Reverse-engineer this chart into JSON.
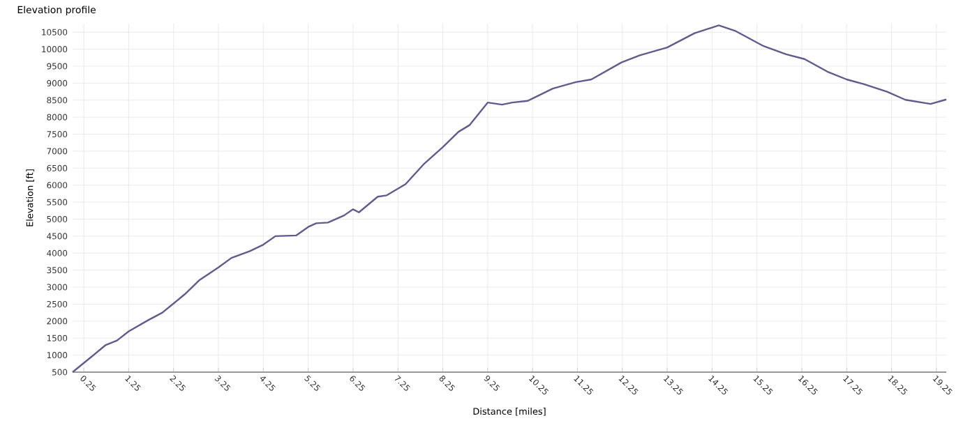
{
  "chart_data": {
    "type": "line",
    "title": "Elevation profile",
    "xlabel": "Distance [miles]",
    "ylabel": "Elevation [ft]",
    "xlim": [
      0,
      19.47
    ],
    "ylim": [
      500,
      10750
    ],
    "xticks": [
      0.25,
      1.25,
      2.25,
      3.25,
      4.25,
      5.25,
      6.25,
      7.25,
      8.25,
      9.25,
      10.25,
      11.25,
      12.25,
      13.25,
      14.25,
      15.25,
      16.25,
      17.25,
      18.25,
      19.25
    ],
    "yticks": [
      500,
      1000,
      1500,
      2000,
      2500,
      3000,
      3500,
      4000,
      4500,
      5000,
      5500,
      6000,
      6500,
      7000,
      7500,
      8000,
      8500,
      9000,
      9500,
      10000,
      10500
    ],
    "grid": true,
    "marker": "none",
    "line_style": "solid",
    "x": [
      0,
      0.42,
      0.73,
      0.99,
      1.25,
      1.7,
      2.0,
      2.25,
      2.5,
      2.82,
      3.25,
      3.54,
      3.95,
      4.25,
      4.52,
      4.98,
      5.25,
      5.43,
      5.69,
      6.05,
      6.25,
      6.38,
      6.8,
      7.0,
      7.42,
      7.82,
      8.25,
      8.6,
      8.85,
      9.25,
      9.57,
      9.8,
      10.14,
      10.7,
      11.21,
      11.56,
      12.23,
      12.64,
      13.25,
      13.86,
      14.4,
      14.78,
      15.4,
      15.9,
      16.31,
      16.82,
      17.25,
      17.64,
      18.15,
      18.56,
      19.12,
      19.47
    ],
    "series": [
      {
        "color": "#5f5b8f",
        "values": [
          500,
          950,
          1290,
          1430,
          1700,
          2040,
          2250,
          2520,
          2790,
          3200,
          3580,
          3860,
          4060,
          4250,
          4500,
          4520,
          4770,
          4880,
          4900,
          5110,
          5290,
          5200,
          5660,
          5700,
          6030,
          6610,
          7120,
          7570,
          7770,
          8430,
          8370,
          8430,
          8480,
          8840,
          9030,
          9110,
          9610,
          9820,
          10050,
          10470,
          10700,
          10530,
          10090,
          9850,
          9710,
          9340,
          9110,
          8970,
          8750,
          8510,
          8390,
          8520
        ]
      }
    ]
  }
}
